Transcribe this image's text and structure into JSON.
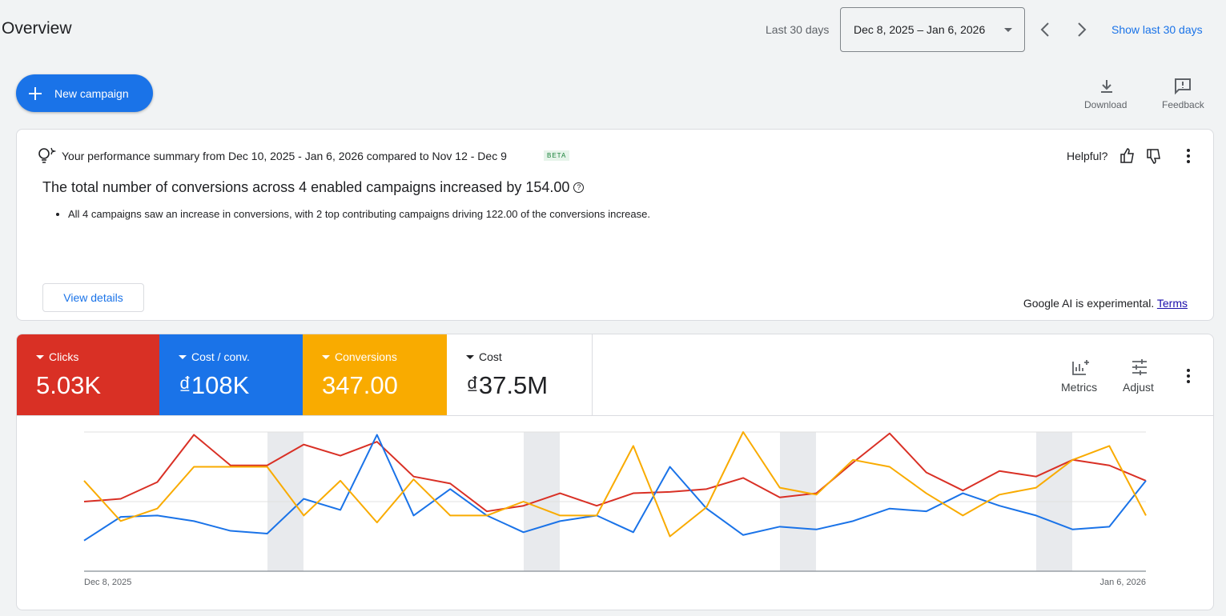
{
  "header": {
    "title": "Overview",
    "range_label": "Last 30 days",
    "date_range": "Dec 8, 2025 – Jan 6, 2026",
    "show_last": "Show last 30 days",
    "new_campaign": "New campaign",
    "download": "Download",
    "feedback": "Feedback"
  },
  "summary": {
    "intro": "Your performance summary from Dec 10, 2025 - Jan 6, 2026 compared to Nov 12 - Dec 9",
    "badge": "BETA",
    "helpful": "Helpful?",
    "headline": "The total number of conversions across 4 enabled campaigns increased by 154.00",
    "bullet": "All 4 campaigns saw an increase in conversions, with 2 top contributing campaigns driving 122.00 of the conversions increase.",
    "view_details": "View details",
    "disclaimer": "Google AI is experimental.",
    "terms": "Terms"
  },
  "toolbar": {
    "metrics": "Metrics",
    "adjust": "Adjust"
  },
  "extra_metric": {
    "name": "Cost",
    "summary": "₫37.5M"
  },
  "chart_data": {
    "type": "line",
    "x": [
      "Dec 8, 2025",
      null,
      null,
      null,
      null,
      null,
      null,
      null,
      null,
      null,
      null,
      null,
      null,
      null,
      null,
      null,
      null,
      null,
      null,
      null,
      null,
      null,
      null,
      null,
      null,
      null,
      null,
      null,
      null,
      "Jan 6, 2026"
    ],
    "ylim": [
      0,
      100
    ],
    "yticks": [
      0,
      50,
      100
    ],
    "grid": true,
    "series": [
      {
        "name": "Clicks",
        "summary": "5.03K",
        "color": "#d93025",
        "values": [
          50,
          52,
          64,
          98,
          76,
          76,
          91,
          83,
          93,
          68,
          63,
          43,
          47,
          56,
          47,
          56,
          57,
          59,
          67,
          53,
          56,
          78,
          99,
          71,
          58,
          72,
          68,
          80,
          76,
          65
        ]
      },
      {
        "name": "Cost / conv.",
        "summary": "₫108K",
        "color": "#1a73e8",
        "values": [
          22,
          39,
          40,
          36,
          29,
          27,
          52,
          44,
          98,
          40,
          59,
          40,
          28,
          36,
          40,
          28,
          75,
          45,
          26,
          32,
          30,
          36,
          45,
          43,
          56,
          47,
          40,
          30,
          32,
          65
        ]
      },
      {
        "name": "Conversions",
        "summary": "347.00",
        "color": "#f9ab00",
        "values": [
          65,
          36,
          45,
          75,
          75,
          75,
          40,
          65,
          35,
          66,
          40,
          40,
          50,
          40,
          40,
          90,
          25,
          46,
          100,
          60,
          55,
          80,
          75,
          56,
          40,
          55,
          60,
          80,
          90,
          40
        ]
      }
    ]
  }
}
